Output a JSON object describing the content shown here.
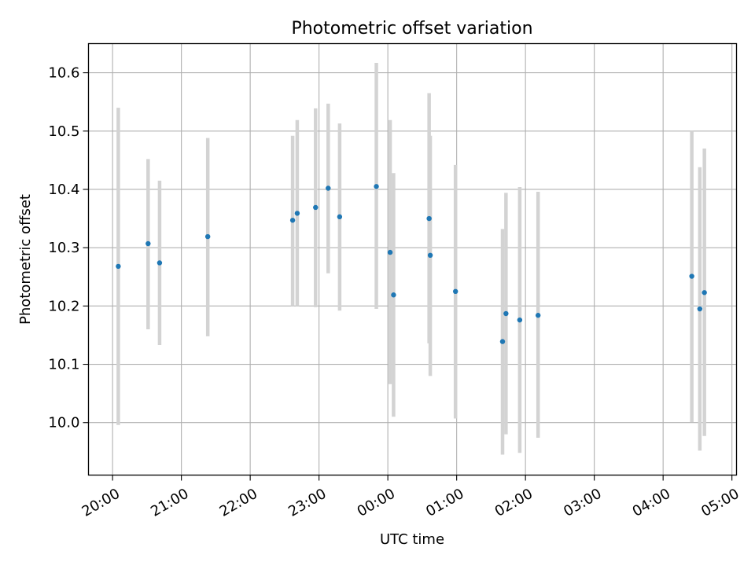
{
  "chart_data": {
    "type": "scatter",
    "title": "Photometric offset variation",
    "xlabel": "UTC time",
    "ylabel": "Photometric offset",
    "x_axis_kind": "time",
    "x_ticks": [
      "20:00",
      "21:00",
      "22:00",
      "23:00",
      "00:00",
      "01:00",
      "02:00",
      "03:00",
      "04:00",
      "05:00"
    ],
    "y_ticks": [
      "10.0",
      "10.1",
      "10.2",
      "10.3",
      "10.4",
      "10.5",
      "10.6"
    ],
    "xlim": [
      "19:39",
      "05:04"
    ],
    "ylim": [
      9.91,
      10.65
    ],
    "grid": true,
    "errorbar_color": "#d3d3d3",
    "point_color": "#1f77b4",
    "points": [
      {
        "time": "20:05",
        "y": 10.268,
        "ylow": 9.996,
        "yhigh": 10.54
      },
      {
        "time": "20:31",
        "y": 10.307,
        "ylow": 10.16,
        "yhigh": 10.452
      },
      {
        "time": "20:41",
        "y": 10.274,
        "ylow": 10.133,
        "yhigh": 10.415
      },
      {
        "time": "21:23",
        "y": 10.319,
        "ylow": 10.148,
        "yhigh": 10.488
      },
      {
        "time": "22:37",
        "y": 10.347,
        "ylow": 10.2,
        "yhigh": 10.492
      },
      {
        "time": "22:41",
        "y": 10.359,
        "ylow": 10.2,
        "yhigh": 10.519
      },
      {
        "time": "22:57",
        "y": 10.369,
        "ylow": 10.198,
        "yhigh": 10.539
      },
      {
        "time": "23:08",
        "y": 10.402,
        "ylow": 10.256,
        "yhigh": 10.547
      },
      {
        "time": "23:18",
        "y": 10.353,
        "ylow": 10.192,
        "yhigh": 10.513
      },
      {
        "time": "23:50",
        "y": 10.405,
        "ylow": 10.195,
        "yhigh": 10.617
      },
      {
        "time": "00:02",
        "y": 10.292,
        "ylow": 10.066,
        "yhigh": 10.519
      },
      {
        "time": "00:05",
        "y": 10.219,
        "ylow": 10.01,
        "yhigh": 10.428
      },
      {
        "time": "00:36",
        "y": 10.35,
        "ylow": 10.136,
        "yhigh": 10.565
      },
      {
        "time": "00:37",
        "y": 10.287,
        "ylow": 10.08,
        "yhigh": 10.492
      },
      {
        "time": "00:59",
        "y": 10.225,
        "ylow": 10.007,
        "yhigh": 10.442
      },
      {
        "time": "01:40",
        "y": 10.139,
        "ylow": 9.945,
        "yhigh": 10.332
      },
      {
        "time": "01:43",
        "y": 10.187,
        "ylow": 9.98,
        "yhigh": 10.394
      },
      {
        "time": "01:55",
        "y": 10.176,
        "ylow": 9.948,
        "yhigh": 10.404
      },
      {
        "time": "02:11",
        "y": 10.184,
        "ylow": 9.974,
        "yhigh": 10.396
      },
      {
        "time": "04:25",
        "y": 10.251,
        "ylow": 10.001,
        "yhigh": 10.5
      },
      {
        "time": "04:32",
        "y": 10.195,
        "ylow": 9.952,
        "yhigh": 10.438
      },
      {
        "time": "04:36",
        "y": 10.223,
        "ylow": 9.977,
        "yhigh": 10.47
      }
    ]
  }
}
